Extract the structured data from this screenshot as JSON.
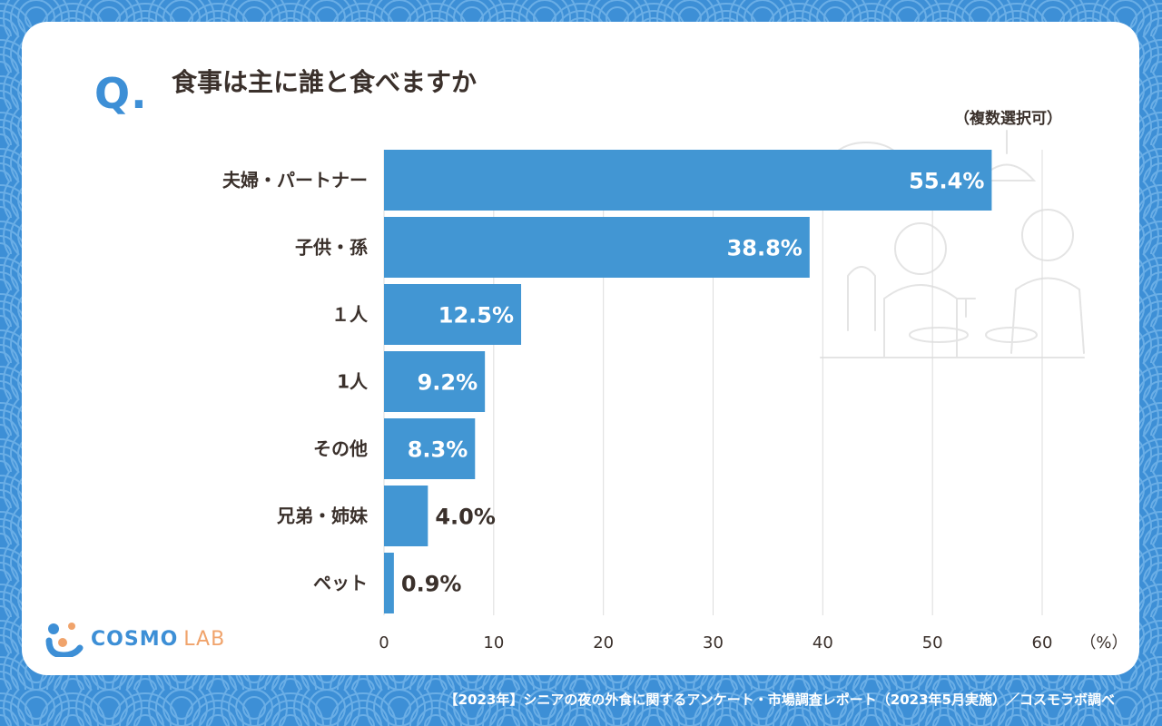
{
  "question": {
    "mark": "Q.",
    "title": "食事は主に誰と食べますか",
    "note": "（複数選択可）"
  },
  "chart_data": {
    "type": "bar",
    "orientation": "horizontal",
    "categories": [
      "夫婦・パートナー",
      "子供・孫",
      "１人",
      "1人",
      "その他",
      "兄弟・姉妹",
      "ペット"
    ],
    "values": [
      55.4,
      38.8,
      12.5,
      9.2,
      8.3,
      4.0,
      0.9
    ],
    "value_labels": [
      "55.4%",
      "38.8%",
      "12.5%",
      "9.2%",
      "8.3%",
      "4.0%",
      "0.9%"
    ],
    "xlim": [
      0,
      60
    ],
    "ticks": [
      0,
      10,
      20,
      30,
      40,
      50,
      60
    ],
    "unit_label": "（%）",
    "grid": "vertical",
    "bar_color": "#4296d3"
  },
  "colors": {
    "accent": "#3d8fd6",
    "text": "#3a302b",
    "logo_lab": "#f0a36b"
  },
  "logo": {
    "cosmo": "COSMO",
    "lab": "LAB"
  },
  "footer": "【2023年】シニアの夜の外食に関するアンケート・市場調査レポート（2023年5月実施）／コスモラボ調べ"
}
